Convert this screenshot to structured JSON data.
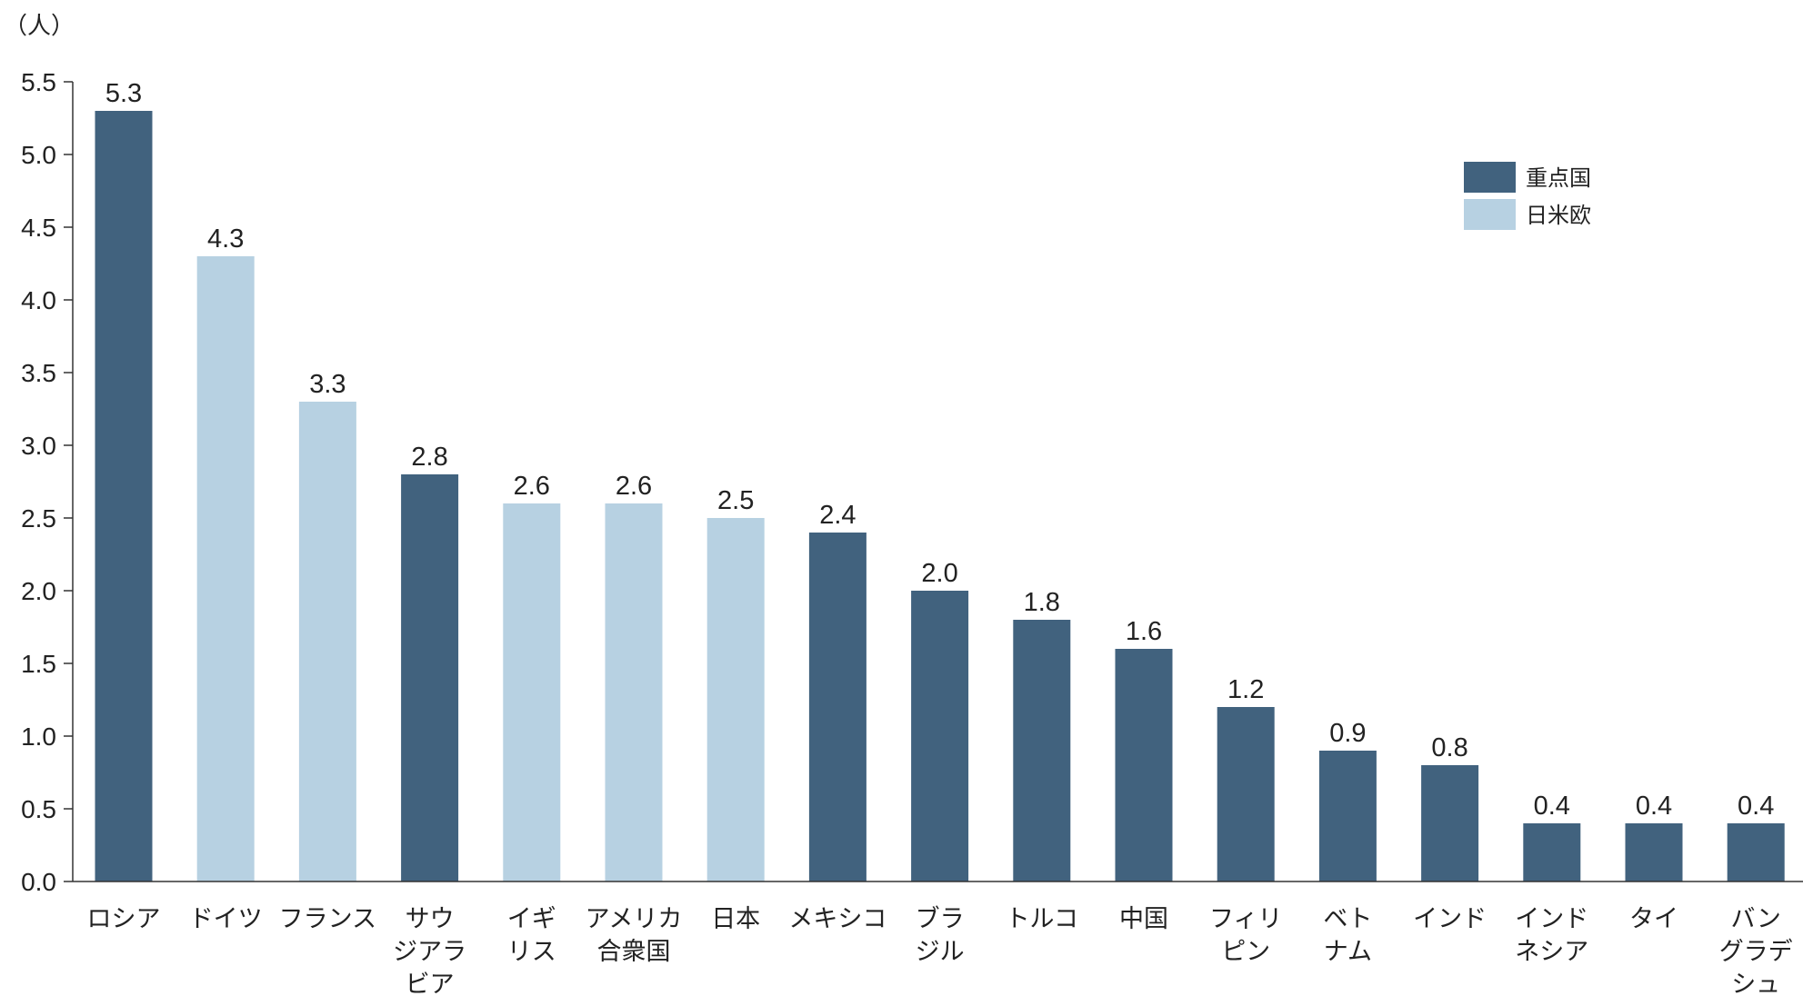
{
  "chart_data": {
    "type": "bar",
    "unit_label": "（人）",
    "categories": [
      [
        "ロシア"
      ],
      [
        "ドイツ"
      ],
      [
        "フランス"
      ],
      [
        "サウ",
        "ジアラ",
        "ビア"
      ],
      [
        "イギ",
        "リス"
      ],
      [
        "アメリカ",
        "合衆国"
      ],
      [
        "日本"
      ],
      [
        "メキシコ"
      ],
      [
        "ブラ",
        "ジル"
      ],
      [
        "トルコ"
      ],
      [
        "中国"
      ],
      [
        "フィリ",
        "ピン"
      ],
      [
        "ベト",
        "ナム"
      ],
      [
        "インド"
      ],
      [
        "インド",
        "ネシア"
      ],
      [
        "タイ"
      ],
      [
        "バン",
        "グラデ",
        "シュ"
      ]
    ],
    "values": [
      5.3,
      4.3,
      3.3,
      2.8,
      2.6,
      2.6,
      2.5,
      2.4,
      2.0,
      1.8,
      1.6,
      1.2,
      0.9,
      0.8,
      0.4,
      0.4,
      0.4
    ],
    "value_labels": [
      "5.3",
      "4.3",
      "3.3",
      "2.8",
      "2.6",
      "2.6",
      "2.5",
      "2.4",
      "2.0",
      "1.8",
      "1.6",
      "1.2",
      "0.9",
      "0.8",
      "0.4",
      "0.4",
      "0.4"
    ],
    "groups": [
      "重点国",
      "日米欧",
      "日米欧",
      "重点国",
      "日米欧",
      "日米欧",
      "日米欧",
      "重点国",
      "重点国",
      "重点国",
      "重点国",
      "重点国",
      "重点国",
      "重点国",
      "重点国",
      "重点国",
      "重点国"
    ],
    "legend": [
      {
        "name": "重点国",
        "color": "#41627E"
      },
      {
        "name": "日米欧",
        "color": "#B7D1E2"
      }
    ],
    "legend_position": "top-right",
    "ylim": [
      0,
      5.5
    ],
    "yticks": [
      "0.0",
      "0.5",
      "1.0",
      "1.5",
      "2.0",
      "2.5",
      "3.0",
      "3.5",
      "4.0",
      "4.5",
      "5.0",
      "5.5"
    ],
    "grid": false
  }
}
